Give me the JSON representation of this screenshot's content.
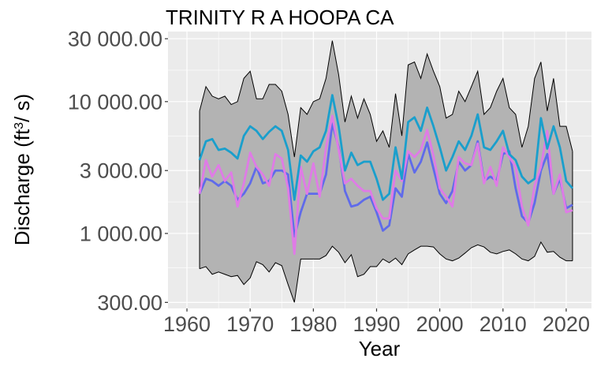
{
  "chart_data": {
    "type": "line",
    "title": "TRINITY R A HOOPA CA",
    "xlabel": "Year",
    "ylabel_main": "Discharge (ft",
    "ylabel_sup": "3",
    "ylabel_end": "/ s)",
    "xlim": [
      1957,
      2024
    ],
    "ylim": [
      270,
      34000
    ],
    "y_scale": "log",
    "grid": true,
    "x_ticks": [
      1960,
      1970,
      1980,
      1990,
      2000,
      2010,
      2020
    ],
    "x_tick_labels": [
      "1960",
      "1970",
      "1980",
      "1990",
      "2000",
      "2010",
      "2020"
    ],
    "y_ticks": [
      300,
      1000,
      3000,
      10000,
      30000
    ],
    "y_tick_labels": [
      "300.00",
      "1 000.00",
      "3 000.00",
      "10 000.00",
      "30 000.00"
    ],
    "colors": {
      "panel": "#ebebeb",
      "grid": "#ffffff",
      "band": "#b3b3b3",
      "band_edge": "#000000",
      "mean": "#1a9fcc",
      "blue_line": "#5f6bea",
      "magenta_line": "#df7be6"
    },
    "x": [
      1962,
      1963,
      1964,
      1965,
      1966,
      1967,
      1968,
      1969,
      1970,
      1971,
      1972,
      1973,
      1974,
      1975,
      1976,
      1977,
      1978,
      1979,
      1980,
      1981,
      1982,
      1983,
      1984,
      1985,
      1986,
      1987,
      1988,
      1989,
      1990,
      1991,
      1992,
      1993,
      1994,
      1995,
      1996,
      1997,
      1998,
      1999,
      2000,
      2001,
      2002,
      2003,
      2004,
      2005,
      2006,
      2007,
      2008,
      2009,
      2010,
      2011,
      2012,
      2013,
      2014,
      2015,
      2016,
      2017,
      2018,
      2019,
      2020,
      2021
    ],
    "band_upper": [
      8500,
      13000,
      11000,
      10500,
      11000,
      9500,
      10000,
      15000,
      17000,
      10500,
      10500,
      13500,
      13500,
      12000,
      8000,
      3800,
      9000,
      8000,
      10000,
      10500,
      15000,
      29000,
      16000,
      7000,
      11000,
      7500,
      10500,
      8000,
      5000,
      6000,
      4500,
      11500,
      5500,
      19000,
      20000,
      15000,
      23000,
      17000,
      13000,
      7500,
      8000,
      12000,
      10000,
      13000,
      17000,
      8000,
      9000,
      12000,
      15000,
      9000,
      8000,
      4500,
      6500,
      15000,
      20000,
      8500,
      15000,
      6500,
      6500,
      4200
    ],
    "band_lower": [
      540,
      560,
      490,
      510,
      490,
      470,
      480,
      410,
      460,
      610,
      580,
      510,
      600,
      570,
      410,
      300,
      640,
      640,
      640,
      640,
      680,
      800,
      720,
      600,
      690,
      470,
      490,
      560,
      560,
      640,
      600,
      650,
      580,
      700,
      750,
      800,
      800,
      790,
      700,
      640,
      620,
      650,
      710,
      780,
      820,
      790,
      720,
      700,
      730,
      750,
      700,
      640,
      620,
      670,
      860,
      720,
      730,
      660,
      620,
      620
    ],
    "series": [
      {
        "name": "",
        "color": "#1a9fcc",
        "values": [
          3600,
          5000,
          5200,
          4300,
          4400,
          4100,
          3700,
          5500,
          6500,
          6000,
          5200,
          5900,
          6500,
          6000,
          4300,
          1800,
          3900,
          3500,
          4200,
          4500,
          6000,
          11200,
          6500,
          3000,
          4100,
          3300,
          3500,
          3500,
          2600,
          1800,
          2000,
          4500,
          2600,
          7000,
          7600,
          6000,
          9000,
          6500,
          4500,
          3000,
          3800,
          5000,
          4300,
          5500,
          8000,
          4500,
          4300,
          5000,
          6000,
          4000,
          3600,
          2700,
          2400,
          2600,
          7500,
          4400,
          6500,
          4500,
          2500,
          2200
        ]
      },
      {
        "name": "",
        "color": "#5f6bea",
        "values": [
          2000,
          2600,
          2500,
          2300,
          2500,
          2300,
          1800,
          2000,
          2400,
          3200,
          2400,
          2500,
          3000,
          3000,
          2800,
          950,
          1450,
          2000,
          2000,
          2000,
          2800,
          6800,
          4500,
          2100,
          1600,
          1650,
          1800,
          1900,
          1450,
          1050,
          1150,
          2200,
          1900,
          4000,
          2900,
          3500,
          4900,
          3100,
          2000,
          1700,
          2100,
          3500,
          3000,
          3300,
          5000,
          2500,
          2700,
          2500,
          4000,
          4200,
          2200,
          1350,
          1200,
          1700,
          3000,
          4000,
          2000,
          2600,
          1550,
          1650
        ]
      },
      {
        "name": "",
        "color": "#df7be6",
        "values": [
          2000,
          3600,
          2700,
          3300,
          2500,
          2900,
          1600,
          2400,
          4100,
          3200,
          2800,
          2300,
          4000,
          3700,
          2200,
          700,
          3200,
          2000,
          3400,
          1900,
          4500,
          7800,
          4300,
          2400,
          2600,
          2300,
          2100,
          2100,
          1550,
          1300,
          1300,
          3000,
          2500,
          4200,
          3800,
          4300,
          6100,
          3900,
          2200,
          1900,
          1600,
          3800,
          3400,
          3300,
          4800,
          2400,
          3200,
          2300,
          4500,
          3800,
          3200,
          1600,
          1150,
          2300,
          3200,
          6000,
          2000,
          2800,
          1450,
          1500
        ]
      }
    ]
  }
}
